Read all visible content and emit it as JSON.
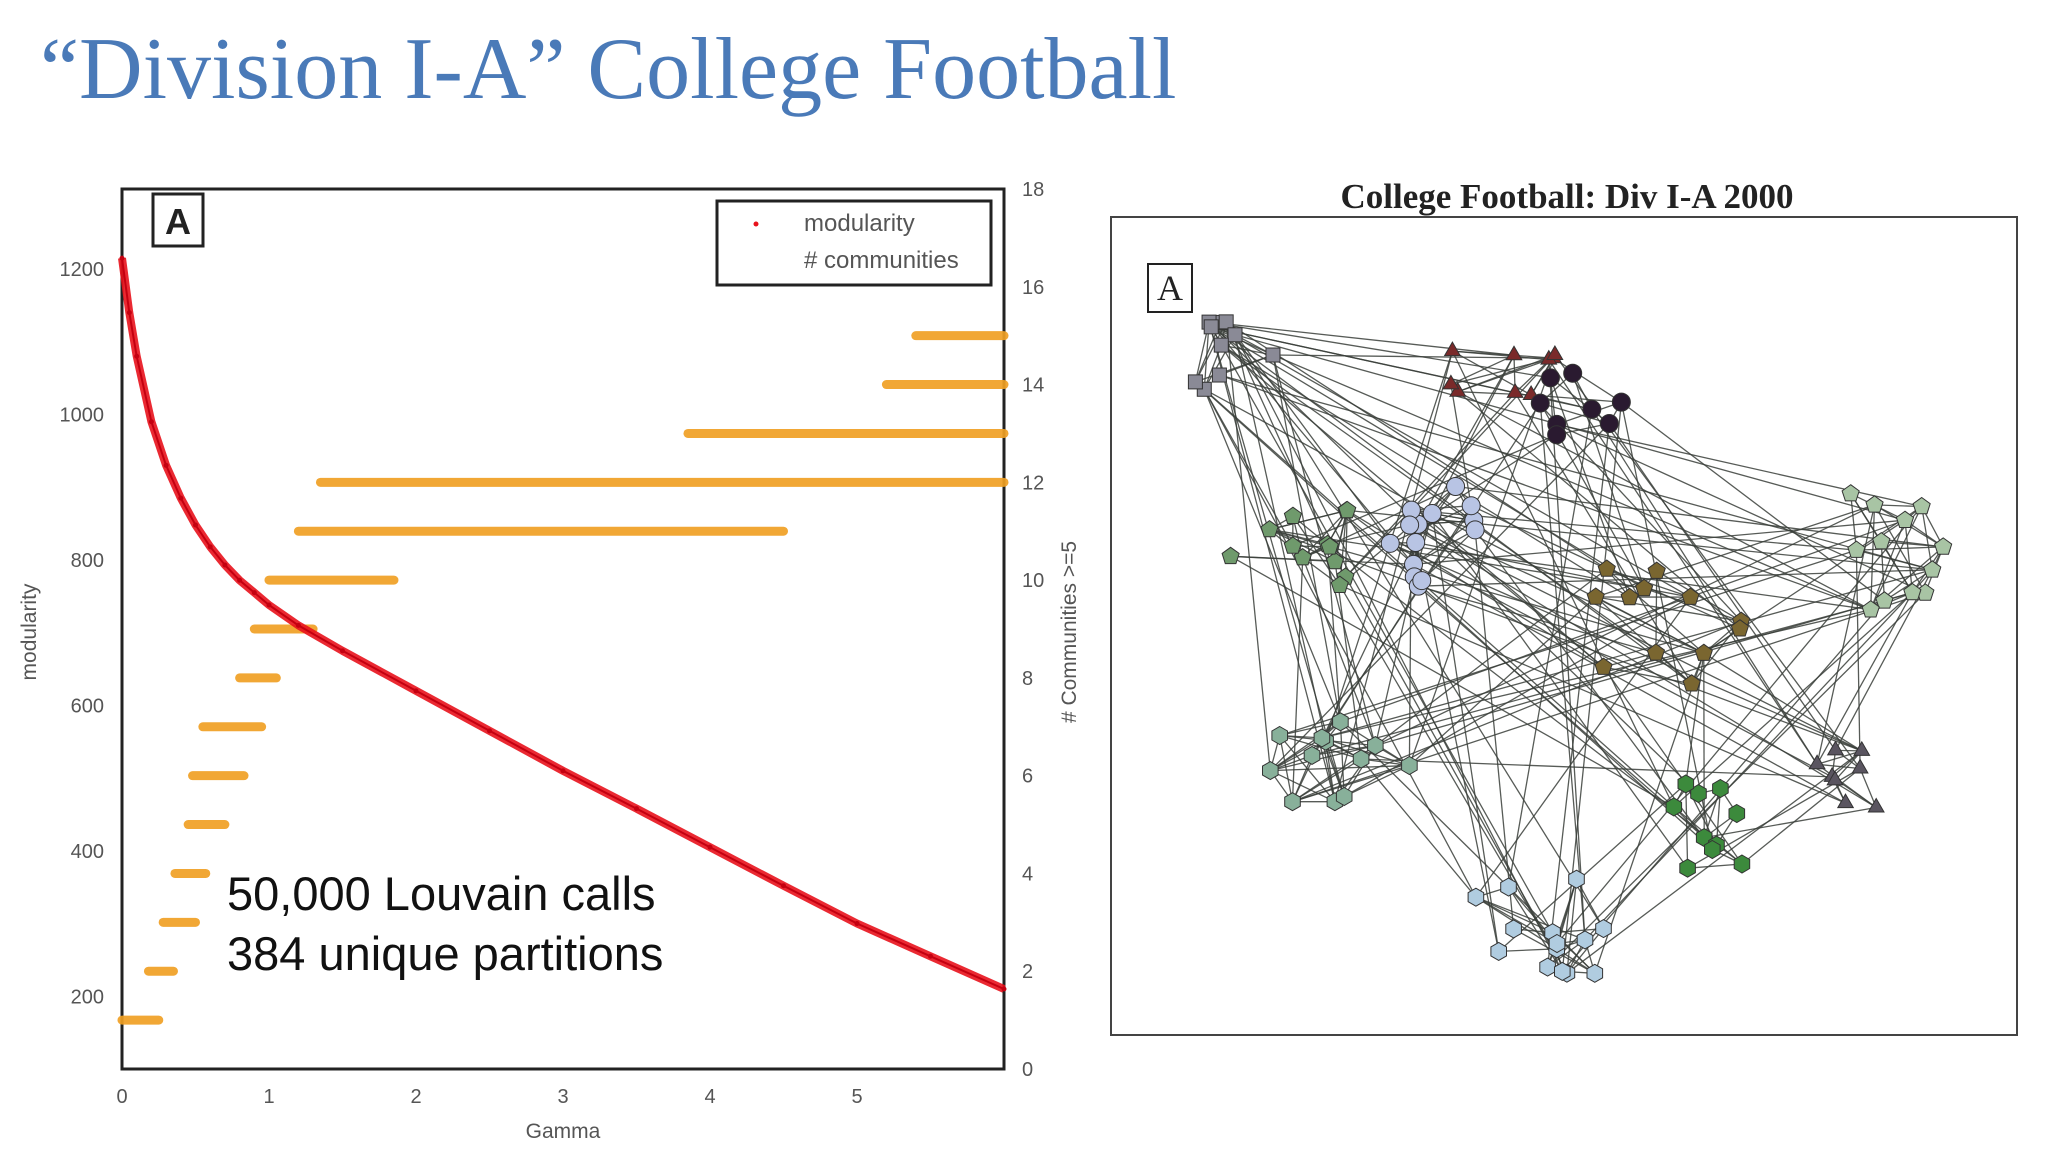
{
  "slide": {
    "title": "“Division I-A” College Football"
  },
  "chart_data": [
    {
      "type": "scatter",
      "panel_label": "A",
      "xlabel": "Gamma",
      "ylabel": "modularity",
      "y2label": "# Communities >=5",
      "xlim": [
        0,
        6
      ],
      "ylim": [
        100,
        1310
      ],
      "y2lim": [
        0,
        18
      ],
      "x_ticks": [
        "0",
        "1",
        "2",
        "3",
        "4",
        "5"
      ],
      "y_ticks": [
        "200",
        "400",
        "600",
        "800",
        "1000",
        "1200"
      ],
      "y2_ticks": [
        "0",
        "2",
        "4",
        "6",
        "8",
        "10",
        "12",
        "14",
        "16",
        "18"
      ],
      "legend": {
        "position": "top-right",
        "entries": [
          "modularity",
          "# communities"
        ]
      },
      "annotations": [
        "50,000 Louvain calls",
        "384 unique partitions"
      ],
      "grid": false,
      "series": [
        {
          "name": "modularity",
          "axis": "left",
          "color": "#e8121c",
          "x": [
            0,
            0.05,
            0.1,
            0.2,
            0.3,
            0.4,
            0.5,
            0.6,
            0.7,
            0.8,
            0.9,
            1.0,
            1.2,
            1.5,
            2.0,
            2.5,
            3.0,
            3.5,
            4.0,
            4.5,
            5.0,
            5.5,
            6.0
          ],
          "y": [
            1215,
            1140,
            1080,
            990,
            930,
            885,
            848,
            818,
            793,
            772,
            755,
            738,
            710,
            675,
            620,
            565,
            510,
            458,
            405,
            352,
            300,
            255,
            210
          ]
        },
        {
          "name": "# communities",
          "axis": "right",
          "color": "#f0a024",
          "segments": [
            {
              "level": 1,
              "x_start": 0.0,
              "x_end": 0.25
            },
            {
              "level": 2,
              "x_start": 0.18,
              "x_end": 0.35
            },
            {
              "level": 3,
              "x_start": 0.28,
              "x_end": 0.5
            },
            {
              "level": 4,
              "x_start": 0.36,
              "x_end": 0.57
            },
            {
              "level": 5,
              "x_start": 0.45,
              "x_end": 0.7
            },
            {
              "level": 6,
              "x_start": 0.48,
              "x_end": 0.83
            },
            {
              "level": 7,
              "x_start": 0.55,
              "x_end": 0.95
            },
            {
              "level": 8,
              "x_start": 0.8,
              "x_end": 1.05
            },
            {
              "level": 9,
              "x_start": 0.9,
              "x_end": 1.3
            },
            {
              "level": 10,
              "x_start": 1.0,
              "x_end": 1.85
            },
            {
              "level": 11,
              "x_start": 1.2,
              "x_end": 4.5
            },
            {
              "level": 12,
              "x_start": 1.35,
              "x_end": 6.0
            },
            {
              "level": 13,
              "x_start": 3.85,
              "x_end": 6.0
            },
            {
              "level": 14,
              "x_start": 5.2,
              "x_end": 6.0
            },
            {
              "level": 15,
              "x_start": 5.4,
              "x_end": 6.0
            }
          ]
        }
      ]
    }
  ],
  "network": {
    "title": "College Football: Div I-A 2000",
    "panel_label": "A"
  }
}
